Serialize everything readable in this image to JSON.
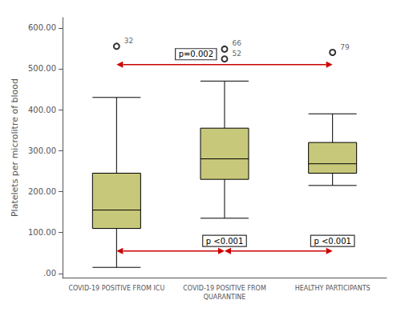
{
  "chart_data": {
    "type": "box",
    "categories": [
      "COVID-19 POSITIVE FROM ICU",
      "COVID-19 POSITIVE FROM\nQUARANTINE",
      "HEALTHY PARTICIPANTS"
    ],
    "boxes": [
      {
        "q1": 110,
        "median": 155,
        "q3": 245,
        "whisker_low": 15,
        "whisker_high": 430,
        "outliers": [
          555
        ],
        "outlier_labels": [
          "32"
        ]
      },
      {
        "q1": 230,
        "median": 280,
        "q3": 355,
        "whisker_low": 135,
        "whisker_high": 470,
        "outliers": [
          548,
          524
        ],
        "outlier_labels": [
          "66",
          "52"
        ]
      },
      {
        "q1": 245,
        "median": 268,
        "q3": 320,
        "whisker_low": 215,
        "whisker_high": 390,
        "outliers": [
          540
        ],
        "outlier_labels": [
          "79"
        ]
      }
    ],
    "color": "#c8c87a",
    "ylabel": "Platelets per microlitre of blood",
    "ylim": [
      -10,
      625
    ],
    "yticks": [
      {
        "value": 0,
        "label": ".00"
      },
      {
        "value": 100,
        "label": "100.00"
      },
      {
        "value": 200,
        "label": "200.00"
      },
      {
        "value": 300,
        "label": "300.00"
      },
      {
        "value": 400,
        "label": "400.00"
      },
      {
        "value": 500,
        "label": "500.00"
      },
      {
        "value": 600,
        "label": "600.00"
      }
    ],
    "grid": false,
    "annotations": [
      {
        "text": "p=0.002",
        "between": [
          0,
          2
        ],
        "arrow_y": 510,
        "label_y": 518,
        "color": "#cc0000"
      },
      {
        "text": "p <0.001",
        "between": [
          0,
          1
        ],
        "arrow_y": 55,
        "label_y": 62,
        "color": "#cc0000"
      },
      {
        "text": "p <0.001",
        "between": [
          1,
          2
        ],
        "arrow_y": 55,
        "label_y": 62,
        "color": "#cc0000"
      }
    ]
  }
}
